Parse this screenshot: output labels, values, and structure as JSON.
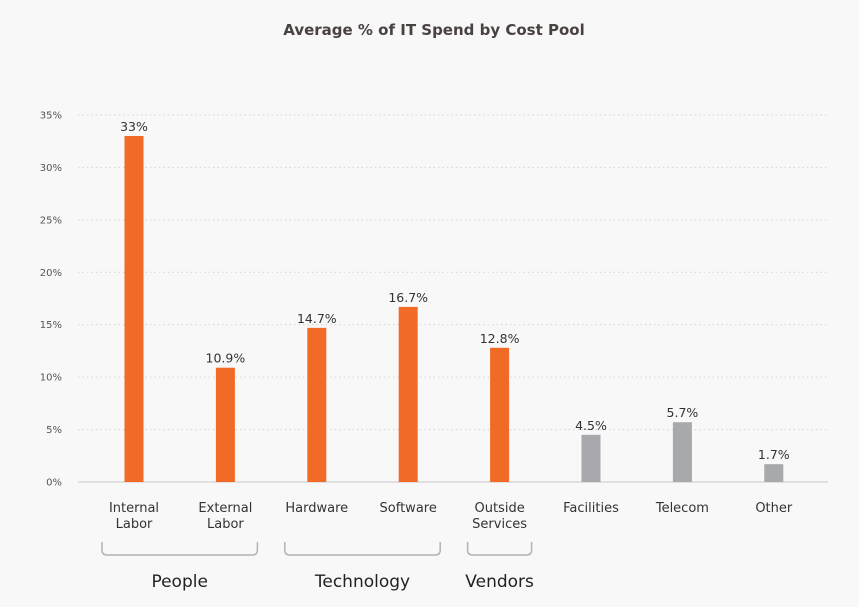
{
  "chart_data": {
    "type": "bar",
    "title": "Average % of IT Spend by Cost Pool",
    "categories": [
      [
        "Internal",
        "Labor"
      ],
      [
        "External",
        "Labor"
      ],
      [
        "Hardware"
      ],
      [
        "Software"
      ],
      [
        "Outside",
        "Services"
      ],
      [
        "Facilities"
      ],
      [
        "Telecom"
      ],
      [
        "Other"
      ]
    ],
    "values": [
      33,
      10.9,
      14.7,
      16.7,
      12.8,
      4.5,
      5.7,
      1.7
    ],
    "value_labels": [
      "33%",
      "10.9%",
      "14.7%",
      "16.7%",
      "12.8%",
      "4.5%",
      "5.7%",
      "1.7%"
    ],
    "ylim": [
      0,
      35
    ],
    "yticks": [
      "0%",
      "5%",
      "10%",
      "15%",
      "20%",
      "25%",
      "30%",
      "35%"
    ],
    "grid": "horizontal dotted",
    "colors": {
      "highlight": "#f26b26",
      "muted": "#a7a9ac"
    },
    "bar_colors": [
      "highlight",
      "highlight",
      "highlight",
      "highlight",
      "highlight",
      "muted",
      "muted",
      "muted"
    ],
    "groups": [
      {
        "label": "People",
        "categories": [
          0,
          1
        ]
      },
      {
        "label": "Technology",
        "categories": [
          2,
          3
        ]
      },
      {
        "label": "Vendors",
        "categories": [
          4,
          4
        ]
      }
    ]
  }
}
